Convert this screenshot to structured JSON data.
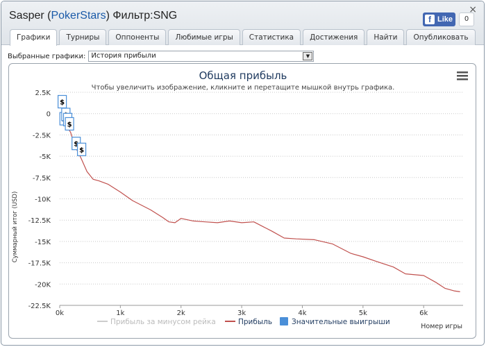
{
  "window": {
    "title_prefix": "Sasper (",
    "title_link": "PokerStars",
    "title_suffix": ") Фильтр:SNG",
    "close_label": "×"
  },
  "facebook": {
    "like_label": "Like",
    "icon": "f",
    "count": "0"
  },
  "tabs": [
    {
      "label": "Графики",
      "active": true
    },
    {
      "label": "Турниры"
    },
    {
      "label": "Оппоненты"
    },
    {
      "label": "Любимые игры"
    },
    {
      "label": "Статистика"
    },
    {
      "label": "Достижения"
    },
    {
      "label": "Найти"
    },
    {
      "label": "Опубликовать"
    }
  ],
  "chart_selector": {
    "label": "Выбранные графики:",
    "value": "История прибыли",
    "arrow": "▼"
  },
  "chart_data": {
    "type": "line",
    "title": "Общая прибыль",
    "subtitle": "Чтобы увеличить изображение, кликните и перетащите мышкой внутрь графика.",
    "xlabel": "Номер игры",
    "ylabel": "Суммарный итог (USD)",
    "xlim": [
      0,
      6650
    ],
    "ylim": [
      -22500,
      2500
    ],
    "x_ticks": [
      0,
      1000,
      2000,
      3000,
      4000,
      5000,
      6000
    ],
    "x_tick_labels": [
      "0k",
      "1k",
      "2k",
      "3k",
      "4k",
      "5k",
      "6k"
    ],
    "y_ticks": [
      2500,
      0,
      -2500,
      -5000,
      -7500,
      -10000,
      -12500,
      -15000,
      -17500,
      -20000,
      -22500
    ],
    "y_tick_labels": [
      "2.5K",
      "0",
      "-2.5K",
      "-5K",
      "-7.5K",
      "-10K",
      "-12.5K",
      "-15K",
      "-17.5K",
      "-20K",
      "-22.5K"
    ],
    "grid": "horizontal",
    "legend_position": "bottom",
    "series": [
      {
        "name": "Прибыль за минусом рейка",
        "color": "#cccccc",
        "visible": false,
        "x": [],
        "y": []
      },
      {
        "name": "Прибыль",
        "color": "#c0504d",
        "x": [
          0,
          60,
          120,
          180,
          250,
          350,
          450,
          550,
          650,
          800,
          1000,
          1200,
          1500,
          1700,
          1800,
          1900,
          2000,
          2200,
          2400,
          2600,
          2800,
          3000,
          3200,
          3500,
          3700,
          3900,
          4200,
          4500,
          4800,
          5000,
          5200,
          5500,
          5700,
          6000,
          6200,
          6350,
          6500,
          6600
        ],
        "y": [
          0,
          -800,
          -1500,
          -2200,
          -3800,
          -5200,
          -6800,
          -7700,
          -7900,
          -8300,
          -9200,
          -10200,
          -11300,
          -12200,
          -12700,
          -12800,
          -12300,
          -12600,
          -12700,
          -12800,
          -12600,
          -12800,
          -12700,
          -13800,
          -14600,
          -14700,
          -14800,
          -15300,
          -16400,
          -16800,
          -17300,
          -18000,
          -18800,
          -19000,
          -19800,
          -20500,
          -20800,
          -20900
        ]
      },
      {
        "name": "Значительные выигрыши",
        "color": "#4a8fd8",
        "marker": "$",
        "x": [
          30,
          60,
          90,
          120,
          150,
          260,
          350
        ],
        "y": [
          1400,
          -600,
          -100,
          -700,
          -1200,
          -3500,
          -4200
        ]
      }
    ]
  },
  "chart_menu_icon": "menu-icon"
}
